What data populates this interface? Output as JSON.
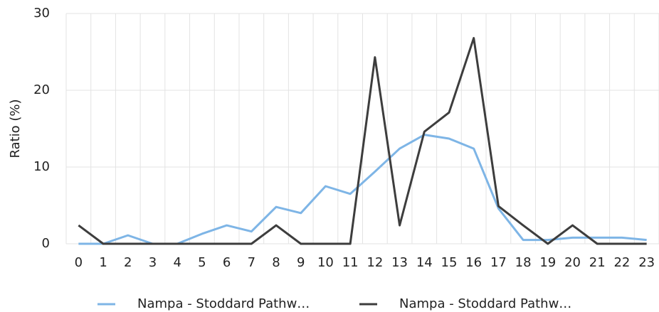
{
  "chart_data": {
    "type": "line",
    "y_label": "Ratio (%)",
    "categories": [
      "0",
      "1",
      "2",
      "3",
      "4",
      "5",
      "6",
      "7",
      "8",
      "9",
      "10",
      "11",
      "12",
      "13",
      "14",
      "15",
      "16",
      "17",
      "18",
      "19",
      "20",
      "21",
      "22",
      "23"
    ],
    "series": [
      {
        "name": "Nampa - Stoddard Pathw…",
        "color": "#7eb5e6",
        "values": [
          0,
          0,
          1.1,
          0,
          0,
          1.3,
          2.4,
          1.6,
          4.8,
          4.0,
          7.5,
          6.5,
          9.4,
          12.4,
          14.2,
          13.7,
          12.4,
          4.6,
          0.5,
          0.5,
          0.8,
          0.8,
          0.8,
          0.5
        ]
      },
      {
        "name": "Nampa - Stoddard Pathw…",
        "color": "#3d3d3d",
        "values": [
          2.4,
          0,
          0,
          0,
          0,
          0,
          0,
          0,
          2.4,
          0,
          0,
          0,
          24.3,
          2.4,
          14.6,
          17.1,
          26.8,
          4.9,
          2.4,
          0,
          2.4,
          0,
          0,
          0
        ]
      }
    ],
    "ylim": [
      0,
      30
    ],
    "yticks": [
      0,
      10,
      20,
      30
    ],
    "grid": true,
    "legend": "bottom"
  }
}
